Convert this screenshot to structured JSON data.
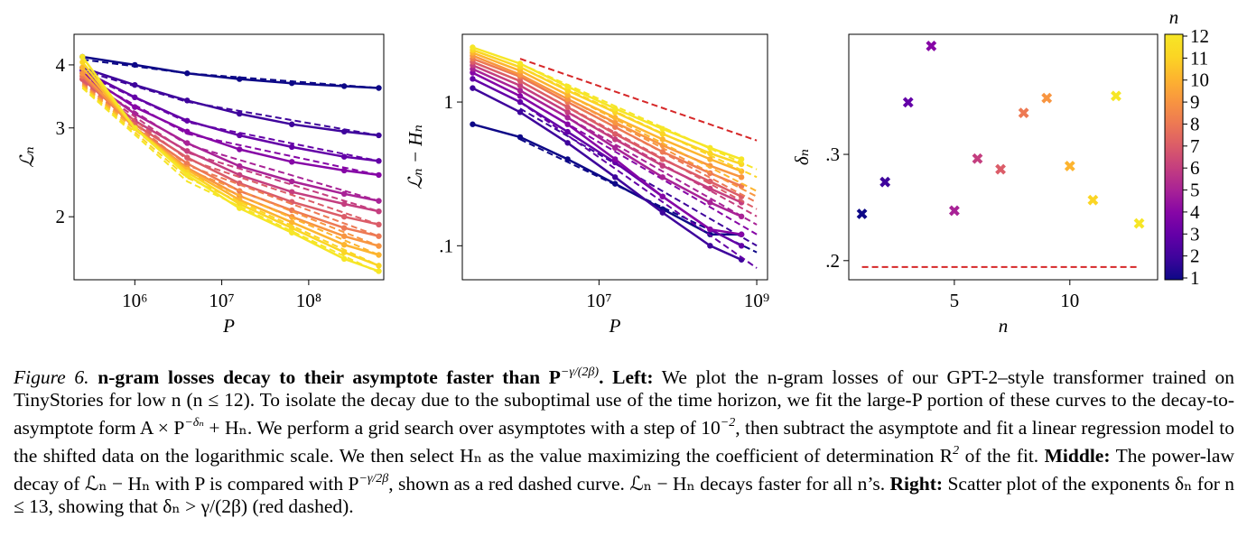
{
  "chart_data": [
    {
      "type": "line",
      "xlabel": "P",
      "ylabel": "ℒₙ",
      "xscale": "log",
      "yscale": "log",
      "xlim": [
        200000,
        730000000
      ],
      "ylim": [
        1.5,
        4.6
      ],
      "xticks": [
        {
          "value": 1000000,
          "label": "10⁶"
        },
        {
          "value": 10000000,
          "label": "10⁷"
        },
        {
          "value": 100000000,
          "label": "10⁸"
        }
      ],
      "yticks": [
        2,
        3,
        4
      ],
      "x": [
        250000,
        1000000,
        4000000,
        16000000,
        64000000,
        256000000,
        640000000
      ],
      "fit_x": [
        250000,
        4000000,
        640000000
      ],
      "series": [
        {
          "color": "#0d0887",
          "values": [
            4.15,
            4.0,
            3.85,
            3.75,
            3.68,
            3.63,
            3.6
          ],
          "fit": [
            4.1,
            3.85,
            3.6
          ]
        },
        {
          "color": "#3e049c",
          "values": [
            3.95,
            3.65,
            3.4,
            3.2,
            3.05,
            2.95,
            2.9
          ],
          "fit": [
            3.9,
            3.38,
            2.9
          ]
        },
        {
          "color": "#6300a7",
          "values": [
            3.9,
            3.45,
            3.1,
            2.9,
            2.75,
            2.63,
            2.58
          ],
          "fit": [
            3.85,
            3.08,
            2.58
          ]
        },
        {
          "color": "#8606a6",
          "values": [
            3.85,
            3.3,
            2.95,
            2.72,
            2.57,
            2.47,
            2.42
          ],
          "fit": [
            3.8,
            2.92,
            2.42
          ]
        },
        {
          "color": "#a82296",
          "values": [
            3.8,
            3.2,
            2.8,
            2.52,
            2.35,
            2.22,
            2.15
          ],
          "fit": [
            3.75,
            2.78,
            2.15
          ]
        },
        {
          "color": "#c43e7f",
          "values": [
            3.75,
            3.1,
            2.7,
            2.42,
            2.24,
            2.12,
            2.05
          ],
          "fit": [
            3.72,
            2.68,
            2.05
          ]
        },
        {
          "color": "#db5c68",
          "values": [
            3.75,
            3.05,
            2.62,
            2.33,
            2.14,
            2.0,
            1.93
          ],
          "fit": [
            3.7,
            2.6,
            1.93
          ]
        },
        {
          "color": "#ed7953",
          "values": [
            3.8,
            3.0,
            2.55,
            2.25,
            2.06,
            1.9,
            1.83
          ],
          "fit": [
            3.68,
            2.53,
            1.83
          ]
        },
        {
          "color": "#f89540",
          "values": [
            3.85,
            3.0,
            2.5,
            2.2,
            2.0,
            1.83,
            1.75
          ],
          "fit": [
            3.66,
            2.48,
            1.75
          ]
        },
        {
          "color": "#fdb42f",
          "values": [
            3.95,
            3.0,
            2.48,
            2.16,
            1.95,
            1.76,
            1.68
          ],
          "fit": [
            3.64,
            2.44,
            1.68
          ]
        },
        {
          "color": "#fbd524",
          "values": [
            4.05,
            3.0,
            2.45,
            2.12,
            1.9,
            1.7,
            1.6
          ],
          "fit": [
            3.62,
            2.39,
            1.6
          ]
        },
        {
          "color": "#f6e626",
          "values": [
            4.15,
            3.0,
            2.42,
            2.08,
            1.86,
            1.65,
            1.56
          ],
          "fit": [
            3.6,
            2.35,
            1.55
          ]
        }
      ]
    },
    {
      "type": "line",
      "xlabel": "P",
      "ylabel": "ℒₙ − Hₙ",
      "xscale": "log",
      "yscale": "log",
      "xlim": [
        185000,
        1370000000
      ],
      "ylim": [
        0.058,
        2.96
      ],
      "xticks": [
        {
          "value": 10000000,
          "label": "10⁷"
        },
        {
          "value": 1000000000,
          "label": "10⁹"
        }
      ],
      "yticks": [
        1,
        {
          "value": 0.1,
          "label": ".1"
        }
      ],
      "x": [
        250000,
        1000000,
        4000000,
        16000000,
        64000000,
        256000000,
        640000000
      ],
      "fit_x": [
        1000000,
        1000000000
      ],
      "reference": {
        "x": [
          1000000,
          1000000000
        ],
        "values": [
          2.0,
          0.54
        ],
        "color": "#d62728"
      },
      "series": [
        {
          "color": "#0d0887",
          "values": [
            0.7,
            0.57,
            0.4,
            0.27,
            0.18,
            0.12,
            0.12
          ],
          "fit": [
            0.55,
            0.09
          ]
        },
        {
          "color": "#3e049c",
          "values": [
            1.25,
            0.85,
            0.52,
            0.3,
            0.17,
            0.1,
            0.08
          ],
          "fit": [
            0.9,
            0.1
          ]
        },
        {
          "color": "#6300a7",
          "values": [
            1.45,
            1.0,
            0.62,
            0.38,
            0.22,
            0.13,
            0.1
          ],
          "fit": [
            1.0,
            0.07
          ]
        },
        {
          "color": "#8606a6",
          "values": [
            1.6,
            1.1,
            0.7,
            0.4,
            0.22,
            0.13,
            0.12
          ],
          "fit": [
            1.1,
            0.12
          ]
        },
        {
          "color": "#a82296",
          "values": [
            1.7,
            1.2,
            0.78,
            0.48,
            0.3,
            0.2,
            0.16
          ],
          "fit": [
            1.2,
            0.14
          ]
        },
        {
          "color": "#c43e7f",
          "values": [
            1.8,
            1.3,
            0.85,
            0.55,
            0.36,
            0.25,
            0.2
          ],
          "fit": [
            1.3,
            0.16
          ]
        },
        {
          "color": "#db5c68",
          "values": [
            1.9,
            1.4,
            0.92,
            0.6,
            0.4,
            0.28,
            0.22
          ],
          "fit": [
            1.4,
            0.18
          ]
        },
        {
          "color": "#ed7953",
          "values": [
            2.0,
            1.5,
            1.0,
            0.67,
            0.45,
            0.32,
            0.26
          ],
          "fit": [
            1.5,
            0.2
          ]
        },
        {
          "color": "#f89540",
          "values": [
            2.1,
            1.55,
            1.05,
            0.72,
            0.5,
            0.36,
            0.3
          ],
          "fit": [
            1.55,
            0.22
          ]
        },
        {
          "color": "#fdb42f",
          "values": [
            2.2,
            1.65,
            1.12,
            0.78,
            0.55,
            0.4,
            0.33
          ],
          "fit": [
            1.65,
            0.24
          ]
        },
        {
          "color": "#fbd524",
          "values": [
            2.3,
            1.75,
            1.2,
            0.85,
            0.6,
            0.44,
            0.37
          ],
          "fit": [
            1.75,
            0.3
          ]
        },
        {
          "color": "#f6e626",
          "values": [
            2.4,
            1.85,
            1.28,
            0.9,
            0.65,
            0.48,
            0.4
          ],
          "fit": [
            1.85,
            0.34
          ]
        }
      ]
    },
    {
      "type": "scatter",
      "xlabel": "n",
      "ylabel": "δₙ",
      "xlim": [
        0.43,
        13.8
      ],
      "ylim": [
        0.182,
        0.413
      ],
      "xticks": [
        5,
        10
      ],
      "yticks": [
        {
          "value": 0.2,
          "label": ".2"
        },
        {
          "value": 0.3,
          "label": ".3"
        }
      ],
      "x": [
        1,
        2,
        3,
        4,
        5,
        6,
        7,
        8,
        9,
        10,
        11,
        12,
        13
      ],
      "values": [
        0.244,
        0.274,
        0.349,
        0.402,
        0.247,
        0.296,
        0.286,
        0.339,
        0.353,
        0.289,
        0.257,
        0.355,
        0.235
      ],
      "colors": [
        "#0d0887",
        "#3e049c",
        "#6300a7",
        "#8606a6",
        "#a82296",
        "#c43e7f",
        "#db5c68",
        "#ed7953",
        "#f89540",
        "#fdb42f",
        "#fbd524",
        "#f6e626",
        "#f6e626"
      ],
      "reference": {
        "x": [
          1,
          13
        ],
        "values": [
          0.194,
          0.194
        ],
        "color": "#d62728"
      },
      "colorbar": {
        "label": "n",
        "lim": [
          1,
          12
        ],
        "ticks": [
          1,
          2,
          3,
          4,
          5,
          6,
          7,
          8,
          9,
          10,
          11,
          12
        ],
        "colors": [
          "#0d0887",
          "#3e049c",
          "#6300a7",
          "#8606a6",
          "#a82296",
          "#c43e7f",
          "#db5c68",
          "#ed7953",
          "#f89540",
          "#fdb42f",
          "#fbd524",
          "#f6e626"
        ]
      }
    }
  ],
  "caption": [
    {
      "text": "Figure 6.",
      "style": "italic"
    },
    {
      "text": " n-gram losses decay to their asymptote faster than P",
      "style": "bold"
    },
    {
      "text": "−γ/(2β)",
      "style": "sup"
    },
    {
      "text": ". Left:",
      "style": "bold"
    },
    {
      "text": " We plot the n-gram losses of our GPT-2–style transformer trained on TinyStories for low n (n ≤ 12). To isolate the decay due to the suboptimal use of the time horizon, we fit the large-P portion of these curves to the decay-to-asymptote form A × P",
      "style": "plain"
    },
    {
      "text": "−δₙ",
      "style": "sup"
    },
    {
      "text": " + Hₙ. We perform a grid search over asymptotes with a step of 10",
      "style": "plain"
    },
    {
      "text": "−2",
      "style": "sup"
    },
    {
      "text": ", then subtract the asymptote and fit a linear regression model to the shifted data on the logarithmic scale. We then select Hₙ as the value maximizing the coefficient of determination R",
      "style": "plain"
    },
    {
      "text": "2",
      "style": "sup"
    },
    {
      "text": " of the fit. ",
      "style": "plain"
    },
    {
      "text": "Middle:",
      "style": "bold"
    },
    {
      "text": " The power-law decay of ℒₙ − Hₙ with P is compared with P",
      "style": "plain"
    },
    {
      "text": "−γ/2β",
      "style": "sup"
    },
    {
      "text": ", shown as a red dashed curve. ℒₙ − Hₙ decays faster for all n’s. ",
      "style": "plain"
    },
    {
      "text": "Right:",
      "style": "bold"
    },
    {
      "text": " Scatter plot of the exponents δₙ for n ≤ 13, showing that δₙ > γ/(2β) (red dashed).",
      "style": "plain"
    }
  ]
}
